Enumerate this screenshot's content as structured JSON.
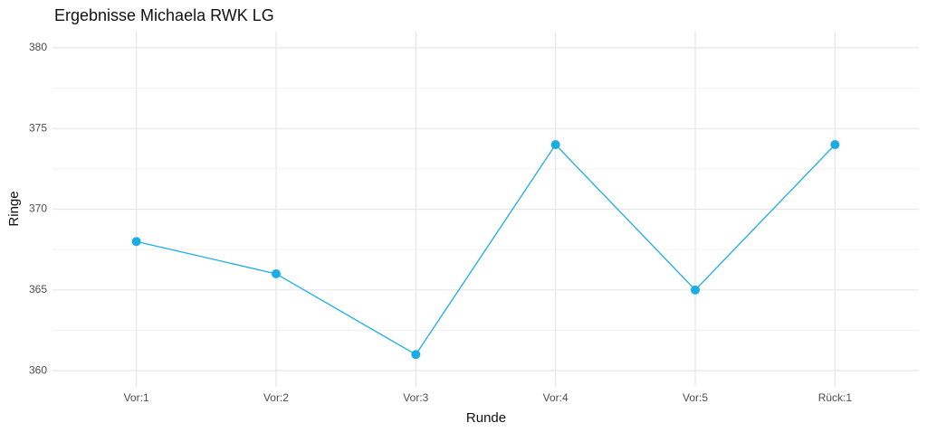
{
  "chart_data": {
    "type": "line",
    "title": "Ergebnisse Michaela RWK LG",
    "x_label": "Runde",
    "y_label": "Ringe",
    "categories": [
      "Vor:1",
      "Vor:2",
      "Vor:3",
      "Vor:4",
      "Vor:5",
      "Rück:1"
    ],
    "values": [
      368,
      366,
      361,
      374,
      365,
      374
    ],
    "color": "#1aade4",
    "ylim": [
      359,
      381
    ],
    "yticks": [
      360,
      365,
      370,
      375,
      380
    ],
    "grid": true
  }
}
